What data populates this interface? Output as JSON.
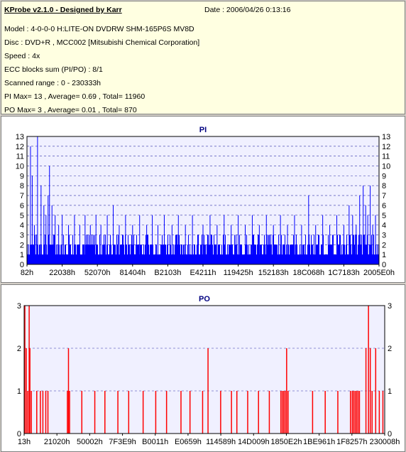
{
  "header": {
    "title": "KProbe v2.1.0 - Designed by Karr",
    "date": "Date : 2006/04/26 0:13:16",
    "lines": [
      "Model : 4-0-0-0 H:LITE-ON DVDRW SHM-165P6S MV8D",
      "Disc : DVD+R , MCC002 [Mitsubishi Chemical Corporation]",
      "Speed : 4x",
      "ECC blocks sum (PI/PO) : 8/1",
      "Scanned range : 0 - 230333h",
      "PI Max= 13 , Average= 0.69 , Total= 11960",
      "PO Max= 3 , Average= 0.01 , Total= 870"
    ]
  },
  "colors": {
    "pi_bar": "#0000ff",
    "po_bar": "#ff0000",
    "plot_bg": "#f0f0ff",
    "grid": "#3333aa",
    "title": "#000080"
  },
  "chart_data": [
    {
      "type": "bar",
      "title": "PI",
      "ylim": [
        0,
        13
      ],
      "yticks": [
        0,
        1,
        2,
        3,
        4,
        5,
        6,
        7,
        8,
        9,
        10,
        11,
        12,
        13
      ],
      "xlim": [
        0,
        230333
      ],
      "xtick_labels": [
        "82h",
        "22038h",
        "52070h",
        "81404h",
        "B2103h",
        "E4211h",
        "119425h",
        "152183h",
        "18C068h",
        "1C7183h",
        "2005E0h"
      ],
      "grid": "dashed horizontal at each integer",
      "baseline_min": 1,
      "baseline_max": 3,
      "spikes": [
        {
          "x": 0.01,
          "y": 12
        },
        {
          "x": 0.015,
          "y": 9
        },
        {
          "x": 0.021,
          "y": 4
        },
        {
          "x": 0.03,
          "y": 13
        },
        {
          "x": 0.04,
          "y": 8
        },
        {
          "x": 0.048,
          "y": 6
        },
        {
          "x": 0.054,
          "y": 5
        },
        {
          "x": 0.06,
          "y": 7
        },
        {
          "x": 0.064,
          "y": 10
        },
        {
          "x": 0.071,
          "y": 6
        },
        {
          "x": 0.08,
          "y": 5
        },
        {
          "x": 0.09,
          "y": 4
        },
        {
          "x": 0.1,
          "y": 5
        },
        {
          "x": 0.118,
          "y": 4
        },
        {
          "x": 0.135,
          "y": 5
        },
        {
          "x": 0.15,
          "y": 4
        },
        {
          "x": 0.165,
          "y": 5
        },
        {
          "x": 0.18,
          "y": 4
        },
        {
          "x": 0.196,
          "y": 5
        },
        {
          "x": 0.21,
          "y": 4
        },
        {
          "x": 0.228,
          "y": 5
        },
        {
          "x": 0.245,
          "y": 6
        },
        {
          "x": 0.262,
          "y": 4
        },
        {
          "x": 0.28,
          "y": 5
        },
        {
          "x": 0.3,
          "y": 4
        },
        {
          "x": 0.32,
          "y": 5
        },
        {
          "x": 0.34,
          "y": 4
        },
        {
          "x": 0.356,
          "y": 5
        },
        {
          "x": 0.372,
          "y": 4
        },
        {
          "x": 0.39,
          "y": 5
        },
        {
          "x": 0.412,
          "y": 4
        },
        {
          "x": 0.43,
          "y": 5
        },
        {
          "x": 0.45,
          "y": 4
        },
        {
          "x": 0.47,
          "y": 5
        },
        {
          "x": 0.5,
          "y": 4
        },
        {
          "x": 0.52,
          "y": 5
        },
        {
          "x": 0.54,
          "y": 4
        },
        {
          "x": 0.56,
          "y": 5
        },
        {
          "x": 0.58,
          "y": 4
        },
        {
          "x": 0.6,
          "y": 5
        },
        {
          "x": 0.62,
          "y": 4
        },
        {
          "x": 0.64,
          "y": 5
        },
        {
          "x": 0.66,
          "y": 4
        },
        {
          "x": 0.68,
          "y": 5
        },
        {
          "x": 0.7,
          "y": 4
        },
        {
          "x": 0.72,
          "y": 5
        },
        {
          "x": 0.74,
          "y": 4
        },
        {
          "x": 0.76,
          "y": 5
        },
        {
          "x": 0.78,
          "y": 4
        },
        {
          "x": 0.8,
          "y": 7
        },
        {
          "x": 0.82,
          "y": 4
        },
        {
          "x": 0.84,
          "y": 5
        },
        {
          "x": 0.86,
          "y": 4
        },
        {
          "x": 0.88,
          "y": 5
        },
        {
          "x": 0.9,
          "y": 4
        },
        {
          "x": 0.915,
          "y": 6
        },
        {
          "x": 0.925,
          "y": 5
        },
        {
          "x": 0.935,
          "y": 4
        },
        {
          "x": 0.945,
          "y": 7
        },
        {
          "x": 0.955,
          "y": 8
        },
        {
          "x": 0.962,
          "y": 6
        },
        {
          "x": 0.968,
          "y": 5
        },
        {
          "x": 0.975,
          "y": 8
        },
        {
          "x": 0.982,
          "y": 4
        },
        {
          "x": 0.99,
          "y": 5
        }
      ]
    },
    {
      "type": "bar",
      "title": "PO",
      "ylim": [
        0,
        3
      ],
      "yticks": [
        0,
        1,
        2,
        3
      ],
      "xlim": [
        0,
        230008
      ],
      "xtick_labels": [
        "13h",
        "21020h",
        "50002h",
        "7F3E9h",
        "B0011h",
        "E0659h",
        "114589h",
        "14D009h",
        "1850E2h",
        "1BE961h",
        "1F8257h",
        "230008h"
      ],
      "grid": "dashed horizontal at each integer",
      "bars": [
        {
          "x": 0.002,
          "y": 3
        },
        {
          "x": 0.006,
          "y": 2
        },
        {
          "x": 0.01,
          "y": 1
        },
        {
          "x": 0.014,
          "y": 3
        },
        {
          "x": 0.016,
          "y": 2
        },
        {
          "x": 0.02,
          "y": 1
        },
        {
          "x": 0.035,
          "y": 1
        },
        {
          "x": 0.045,
          "y": 1
        },
        {
          "x": 0.052,
          "y": 1
        },
        {
          "x": 0.06,
          "y": 1
        },
        {
          "x": 0.066,
          "y": 1
        },
        {
          "x": 0.12,
          "y": 1
        },
        {
          "x": 0.123,
          "y": 2
        },
        {
          "x": 0.126,
          "y": 1
        },
        {
          "x": 0.16,
          "y": 1
        },
        {
          "x": 0.196,
          "y": 1
        },
        {
          "x": 0.224,
          "y": 1
        },
        {
          "x": 0.26,
          "y": 1
        },
        {
          "x": 0.29,
          "y": 1
        },
        {
          "x": 0.33,
          "y": 1
        },
        {
          "x": 0.365,
          "y": 1
        },
        {
          "x": 0.395,
          "y": 1
        },
        {
          "x": 0.435,
          "y": 1
        },
        {
          "x": 0.46,
          "y": 1
        },
        {
          "x": 0.495,
          "y": 1
        },
        {
          "x": 0.51,
          "y": 2
        },
        {
          "x": 0.545,
          "y": 1
        },
        {
          "x": 0.575,
          "y": 1
        },
        {
          "x": 0.59,
          "y": 1
        },
        {
          "x": 0.62,
          "y": 1
        },
        {
          "x": 0.65,
          "y": 1
        },
        {
          "x": 0.68,
          "y": 1
        },
        {
          "x": 0.712,
          "y": 1
        },
        {
          "x": 0.716,
          "y": 1
        },
        {
          "x": 0.72,
          "y": 1
        },
        {
          "x": 0.724,
          "y": 1
        },
        {
          "x": 0.728,
          "y": 2
        },
        {
          "x": 0.732,
          "y": 1
        },
        {
          "x": 0.8,
          "y": 1
        },
        {
          "x": 0.835,
          "y": 1
        },
        {
          "x": 0.87,
          "y": 1
        },
        {
          "x": 0.905,
          "y": 1
        },
        {
          "x": 0.91,
          "y": 1
        },
        {
          "x": 0.914,
          "y": 1
        },
        {
          "x": 0.918,
          "y": 1
        },
        {
          "x": 0.922,
          "y": 1
        },
        {
          "x": 0.926,
          "y": 1
        },
        {
          "x": 0.93,
          "y": 1
        },
        {
          "x": 0.948,
          "y": 2
        },
        {
          "x": 0.955,
          "y": 3
        },
        {
          "x": 0.96,
          "y": 2
        },
        {
          "x": 0.965,
          "y": 1
        },
        {
          "x": 0.975,
          "y": 2
        },
        {
          "x": 0.985,
          "y": 1
        },
        {
          "x": 0.995,
          "y": 1
        }
      ]
    }
  ]
}
